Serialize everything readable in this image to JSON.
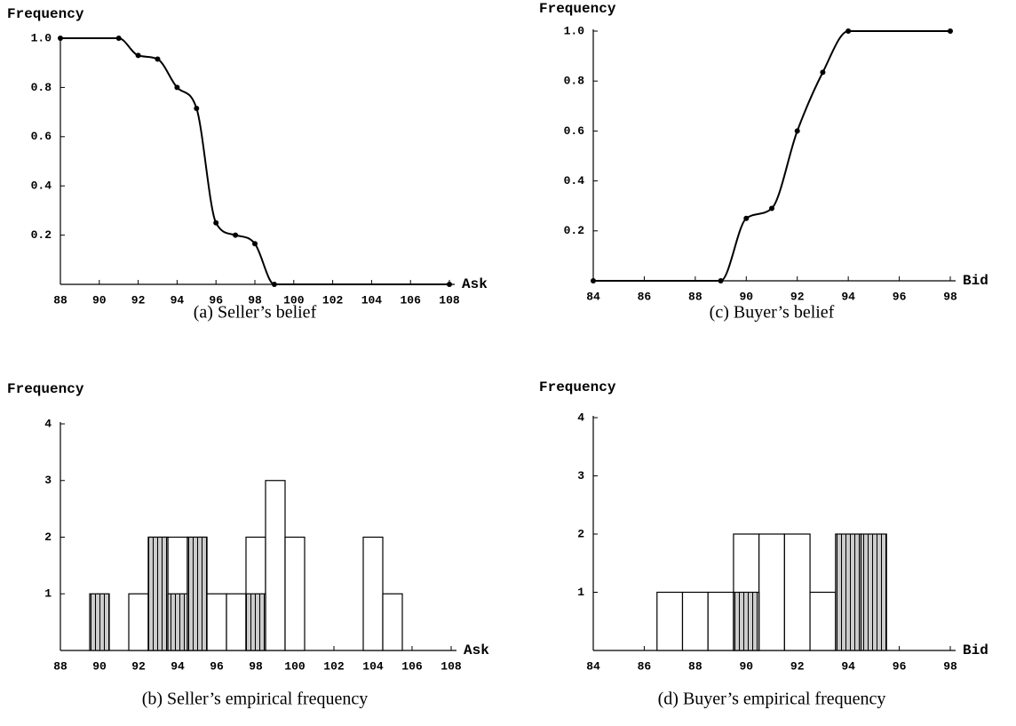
{
  "chart_data": [
    {
      "type": "line",
      "caption": "(a) Seller’s belief",
      "ylabel": "Frequency",
      "xlabel": "Ask",
      "color": "#000000",
      "x": [
        88,
        91,
        92,
        93,
        94,
        95,
        96,
        97,
        98,
        99,
        108
      ],
      "y": [
        1.0,
        1.0,
        0.93,
        0.915,
        0.8,
        0.715,
        0.25,
        0.2,
        0.165,
        0,
        0
      ],
      "xlim": [
        88,
        108
      ],
      "ylim": [
        0,
        1
      ],
      "xticks": [
        88,
        90,
        92,
        94,
        96,
        98,
        100,
        102,
        104,
        106,
        108
      ],
      "yticks": [
        0.2,
        0.4,
        0.6,
        0.8,
        {
          "value": 1,
          "label": "1.0"
        }
      ]
    },
    {
      "type": "line",
      "caption": "(c) Buyer’s belief",
      "ylabel": "Frequency",
      "xlabel": "Bid",
      "color": "#000000",
      "x": [
        84,
        89,
        90,
        91,
        92,
        93,
        94,
        98
      ],
      "y": [
        0,
        0,
        0.25,
        0.29,
        0.6,
        0.835,
        1.0,
        1.0
      ],
      "xlim": [
        84,
        98
      ],
      "ylim": [
        0,
        1
      ],
      "xticks": [
        84,
        86,
        88,
        90,
        92,
        94,
        96,
        98
      ],
      "yticks": [
        0.2,
        0.4,
        0.6,
        0.8,
        {
          "value": 1,
          "label": "1.0"
        }
      ]
    },
    {
      "type": "bar",
      "caption": "(b) Seller’s empirical frequency",
      "ylabel": "Frequency",
      "xlabel": "Ask",
      "x": [
        88,
        89,
        90,
        91,
        92,
        93,
        94,
        95,
        96,
        97,
        98,
        99,
        100,
        101,
        102,
        103,
        104,
        105,
        106,
        107,
        108
      ],
      "series": [
        {
          "color": "#ffffff",
          "values": [
            0,
            0,
            0,
            0,
            1,
            2,
            2,
            2,
            1,
            1,
            2,
            3,
            2,
            0,
            0,
            0,
            2,
            1,
            0,
            0,
            0
          ]
        },
        {
          "color": "#cccccc",
          "pattern": "vertical-lines",
          "values": [
            0,
            0,
            1,
            0,
            0,
            2,
            1,
            2,
            0,
            0,
            1,
            0,
            0,
            0,
            0,
            0,
            0,
            0,
            0,
            0,
            0
          ]
        }
      ],
      "xlim": [
        88,
        108
      ],
      "ylim": [
        0,
        4
      ],
      "xticks": [
        88,
        90,
        92,
        94,
        96,
        98,
        100,
        102,
        104,
        106,
        108
      ],
      "yticks": [
        1,
        2,
        3,
        4
      ]
    },
    {
      "type": "bar",
      "caption": "(d) Buyer’s empirical frequency",
      "ylabel": "Frequency",
      "xlabel": "Bid",
      "x": [
        84,
        85,
        86,
        87,
        88,
        89,
        90,
        91,
        92,
        93,
        94,
        95,
        96,
        97,
        98
      ],
      "series": [
        {
          "color": "#ffffff",
          "values": [
            0,
            0,
            0,
            1,
            1,
            1,
            2,
            2,
            2,
            1,
            0,
            0,
            0,
            0,
            0
          ]
        },
        {
          "color": "#cccccc",
          "pattern": "vertical-lines",
          "values": [
            0,
            0,
            0,
            0,
            0,
            0,
            1,
            0,
            0,
            0,
            2,
            2,
            0,
            0,
            0
          ]
        }
      ],
      "xlim": [
        84,
        98
      ],
      "ylim": [
        0,
        4
      ],
      "xticks": [
        84,
        86,
        88,
        90,
        92,
        94,
        96,
        98
      ],
      "yticks": [
        1,
        2,
        3,
        4
      ]
    }
  ]
}
